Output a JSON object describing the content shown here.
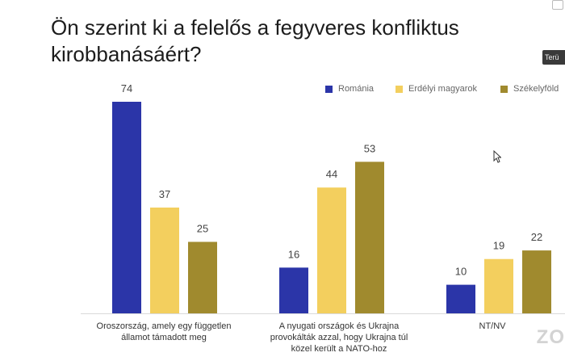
{
  "title": "Ön szerint ki a felelős a fegyveres konfliktus kirobbanásáért?",
  "side_tag": "Terü",
  "watermark": "ZO",
  "chart_data": {
    "type": "bar",
    "title": "Ön szerint ki a felelős a fegyveres konfliktus kirobbanásáért?",
    "categories": [
      "Oroszország, amely egy független államot támadott meg",
      "A nyugati országok és Ukrajna provokálták azzal, hogy Ukrajna túl közel került a NATO-hoz",
      "NT/NV"
    ],
    "series": [
      {
        "name": "Románia",
        "color": "#2b35a8",
        "values": [
          74,
          16,
          10
        ]
      },
      {
        "name": "Erdélyi magyarok",
        "color": "#f3cf5e",
        "values": [
          37,
          44,
          19
        ]
      },
      {
        "name": "Székelyföld",
        "color": "#a08a2e",
        "values": [
          25,
          53,
          22
        ]
      }
    ],
    "ylim": [
      0,
      74
    ],
    "grid": false,
    "legend_position": "top-right",
    "data_labels": true
  }
}
